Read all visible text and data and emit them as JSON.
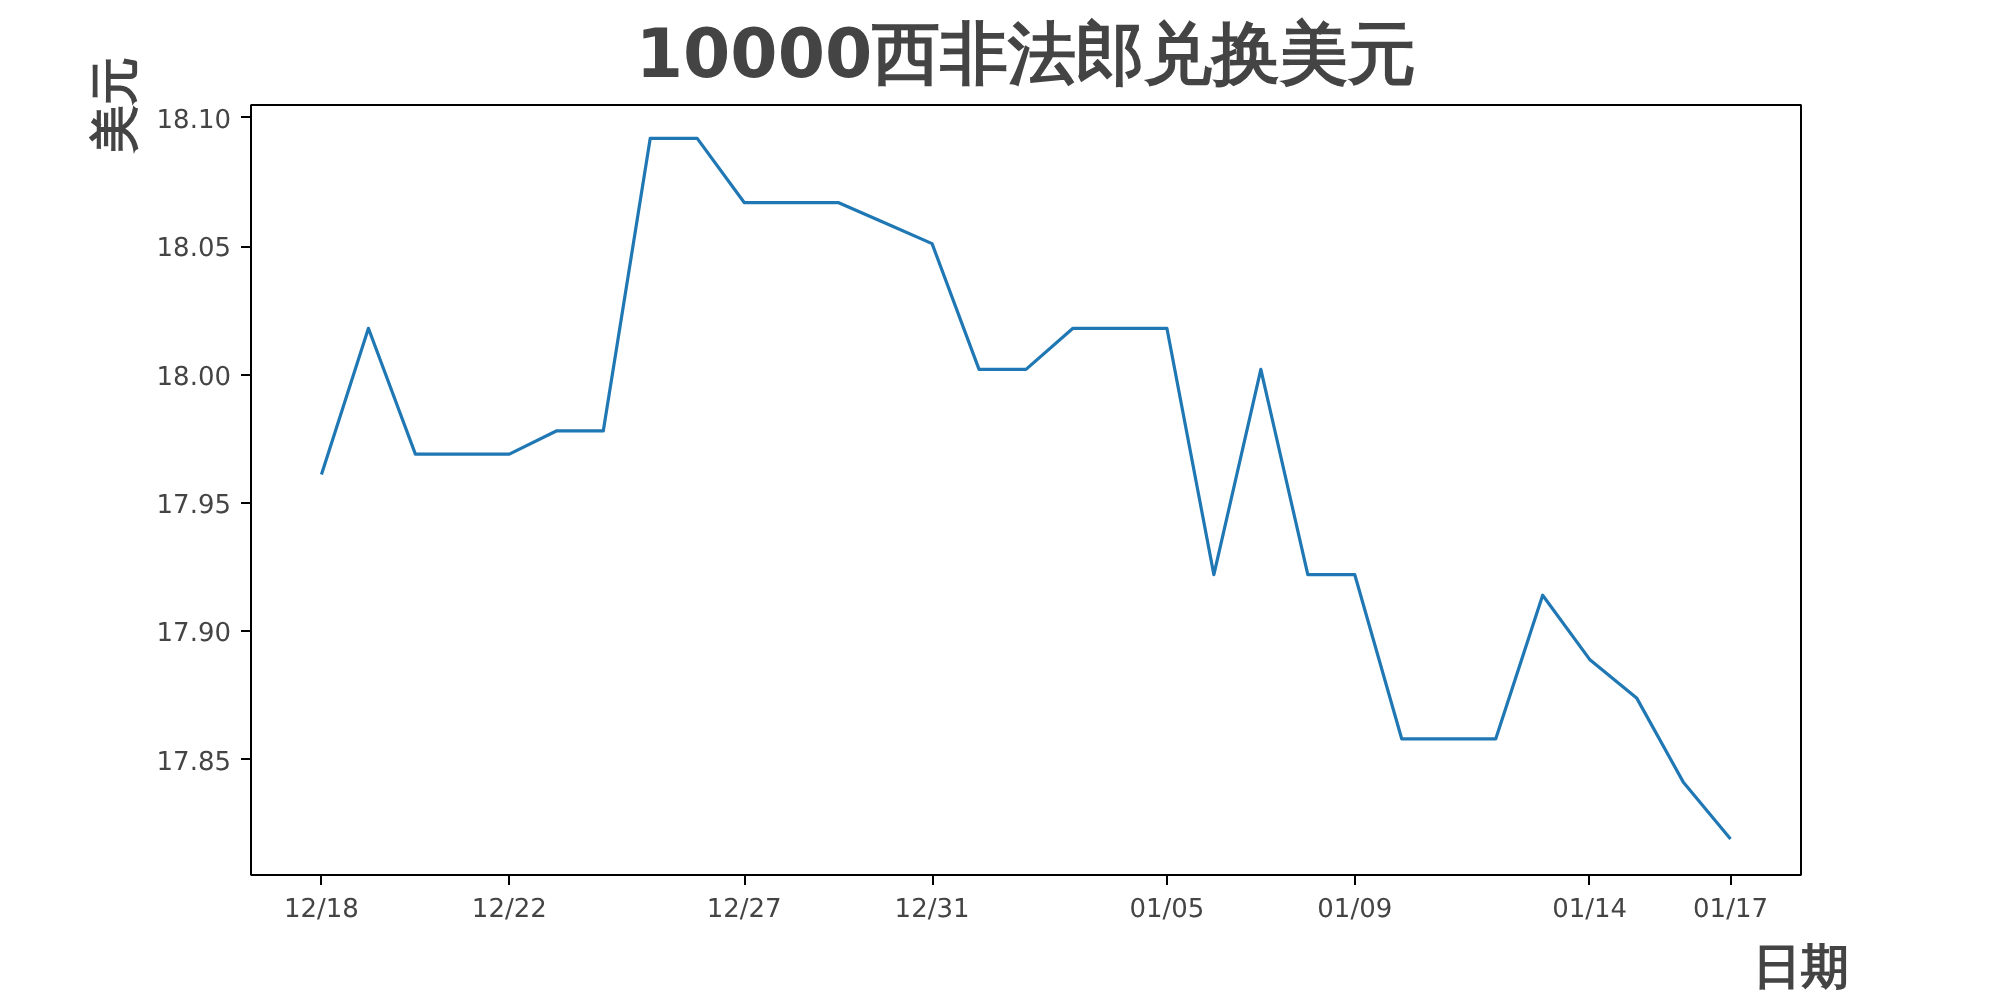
{
  "chart_data": {
    "type": "line",
    "title": "10000西非法郎兑换美元",
    "xlabel": "日期",
    "ylabel": "美元",
    "categories": [
      "12/18",
      null,
      null,
      null,
      "12/22",
      null,
      null,
      null,
      null,
      "12/27",
      null,
      null,
      null,
      "12/31",
      null,
      null,
      null,
      null,
      "01/05",
      null,
      null,
      null,
      "01/09",
      null,
      null,
      null,
      null,
      "01/14",
      null,
      null,
      "01/17"
    ],
    "series": [
      {
        "color": "#1f77b4",
        "values": [
          17.961,
          18.018,
          17.969,
          17.969,
          17.969,
          17.978,
          17.978,
          18.092,
          18.092,
          18.067,
          18.067,
          18.067,
          18.059,
          18.051,
          18.002,
          18.002,
          18.018,
          18.018,
          18.018,
          17.922,
          18.002,
          17.922,
          17.922,
          17.858,
          17.858,
          17.858,
          17.914,
          17.889,
          17.874,
          17.841,
          17.819
        ]
      }
    ],
    "ylim": [
      17.805,
      18.105
    ],
    "yticks": [
      {
        "value": 17.85,
        "label": "17.85"
      },
      {
        "value": 17.9,
        "label": "17.90"
      },
      {
        "value": 17.95,
        "label": "17.95"
      },
      {
        "value": 18.0,
        "label": "18.00"
      },
      {
        "value": 18.05,
        "label": "18.05"
      },
      {
        "value": 18.1,
        "label": "18.10"
      }
    ],
    "grid": false,
    "marker": "none",
    "line_style": "solid"
  }
}
